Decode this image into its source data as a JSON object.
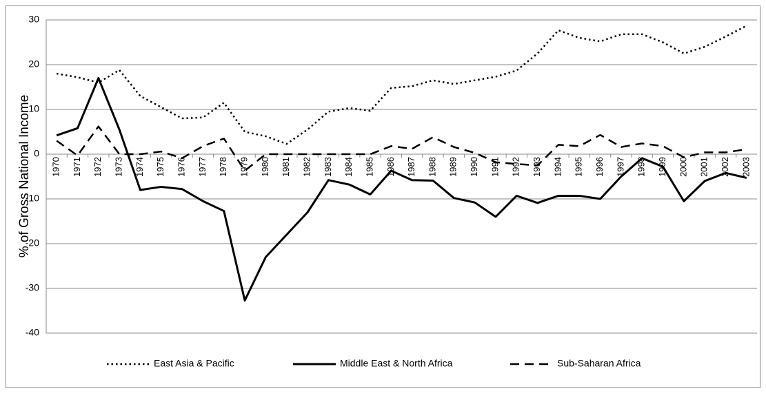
{
  "chart_data": {
    "type": "line",
    "y_label": "% of Gross National Income",
    "categories": [
      "1970",
      "1971",
      "1972",
      "1973",
      "1974",
      "1975",
      "1976",
      "1977",
      "1978",
      "1979",
      "1980",
      "1981",
      "1982",
      "1983",
      "1984",
      "1985",
      "1986",
      "1987",
      "1988",
      "1989",
      "1990",
      "1991",
      "1992",
      "1993",
      "1994",
      "1995",
      "1996",
      "1997",
      "1998",
      "1999",
      "2000",
      "2001",
      "2002",
      "2003"
    ],
    "series": [
      {
        "name": "East Asia & Pacific",
        "color": "#000000",
        "dash": "dotted",
        "values": [
          18,
          17.2,
          16,
          18.8,
          13,
          10.5,
          8,
          8.2,
          11.5,
          5,
          4,
          2.3,
          5.5,
          9.5,
          10.3,
          9.7,
          14.8,
          15.2,
          16.5,
          15.7,
          16.5,
          17.3,
          18.7,
          22.5,
          27.7,
          26,
          25.2,
          26.8,
          26.8,
          25,
          22.5,
          24,
          26.3,
          28.7
        ]
      },
      {
        "name": "Middle East & North Africa",
        "color": "#000000",
        "dash": "solid",
        "values": [
          4.2,
          5.8,
          17,
          5.5,
          -8,
          -7.3,
          -7.8,
          -10.5,
          -12.7,
          -32.7,
          -23,
          -18,
          -13,
          -5.8,
          -6.8,
          -9,
          -3.7,
          -5.8,
          -5.9,
          -9.8,
          -10.8,
          -14,
          -9.3,
          -10.9,
          -9.3,
          -9.3,
          -10,
          -5,
          -0.9,
          -2.8,
          -10.5,
          -6,
          -4.2,
          -5.3
        ]
      },
      {
        "name": "Sub-Saharan Africa",
        "color": "#000000",
        "dash": "dashed",
        "values": [
          3,
          -0.3,
          6.2,
          0,
          0,
          0.6,
          -0.9,
          1.8,
          3.5,
          -3.7,
          0,
          0,
          0,
          0,
          0,
          0,
          1.8,
          1.2,
          3.8,
          1.6,
          0.3,
          -1.8,
          -2.2,
          -2.5,
          2.1,
          1.8,
          4.3,
          1.6,
          2.4,
          1.8,
          -0.7,
          0.4,
          0.4,
          1.1
        ]
      }
    ],
    "ylim": [
      -40,
      30
    ],
    "yticks": [
      30,
      20,
      10,
      0,
      -10,
      -20,
      -30,
      -40
    ],
    "grid": true,
    "legend": "bottom"
  }
}
